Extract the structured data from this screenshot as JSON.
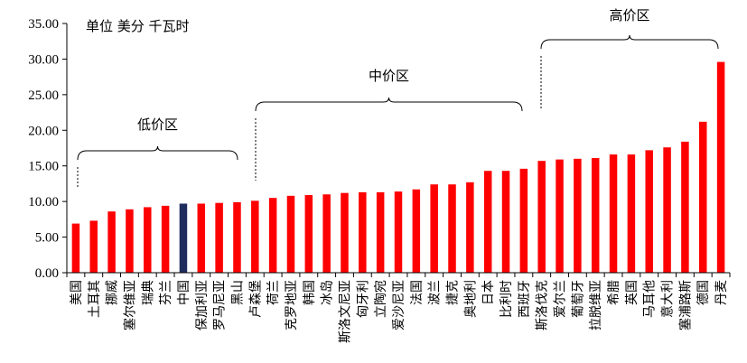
{
  "chart_data": {
    "type": "bar",
    "unit_text": "单位  美分  千瓦时",
    "categories": [
      "美国",
      "土耳其",
      "挪威",
      "塞尔维亚",
      "瑞典",
      "芬兰",
      "中国",
      "保加利亚",
      "罗马尼亚",
      "黑山",
      "卢森堡",
      "荷兰",
      "克罗地亚",
      "韩国",
      "冰岛",
      "斯洛文尼亚",
      "匈牙利",
      "立陶宛",
      "爱沙尼亚",
      "法国",
      "波兰",
      "捷克",
      "奥地利",
      "日本",
      "比利时",
      "西班牙",
      "斯洛伐克",
      "爱尔兰",
      "葡萄牙",
      "拉脱维亚",
      "希腊",
      "英国",
      "马耳他",
      "意大利",
      "塞浦路斯",
      "德国",
      "丹麦"
    ],
    "values": [
      6.9,
      7.3,
      8.6,
      8.9,
      9.2,
      9.4,
      9.7,
      9.7,
      9.8,
      9.9,
      10.1,
      10.5,
      10.8,
      10.9,
      11.0,
      11.2,
      11.3,
      11.3,
      11.4,
      11.7,
      12.4,
      12.4,
      12.7,
      14.3,
      14.3,
      14.6,
      15.7,
      15.9,
      16.0,
      16.1,
      16.6,
      16.6,
      17.2,
      17.6,
      18.4,
      21.2,
      29.6
    ],
    "highlight_index": 6,
    "ylim": [
      0,
      35
    ],
    "yticks": [
      "0.00",
      "5.00",
      "10.00",
      "15.00",
      "20.00",
      "25.00",
      "30.00",
      "35.00"
    ],
    "colors": {
      "bar": "#ff0000",
      "highlight": "#1f2d5c",
      "axis": "#000000"
    },
    "zones": [
      {
        "label": "低价区",
        "start_index": 0,
        "end_index": 9
      },
      {
        "label": "中价区",
        "start_index": 10,
        "end_index": 25
      },
      {
        "label": "高价区",
        "start_index": 26,
        "end_index": 36
      }
    ]
  }
}
